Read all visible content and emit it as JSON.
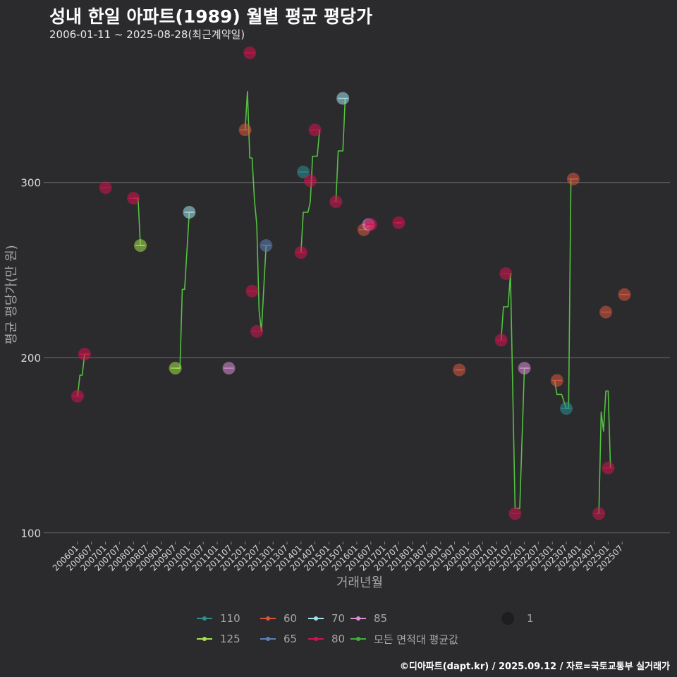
{
  "title": "성내 한일 아파트(1989) 월별 평균 평당가",
  "subtitle": "2006-01-11 ~ 2025-08-28(최근계약일)",
  "footer": "©디아파트(dapt.kr) / 2025.09.12 / 자료=국토교통부 실거래가",
  "chart_data": {
    "type": "scatter",
    "xlabel": "거래년월",
    "ylabel": "평균 평당가(만 원)",
    "x_ticks": [
      "200601",
      "200607",
      "200701",
      "200707",
      "200801",
      "200807",
      "200901",
      "200907",
      "201001",
      "201007",
      "201101",
      "201107",
      "201201",
      "201207",
      "201301",
      "201307",
      "201401",
      "201407",
      "201501",
      "201507",
      "201601",
      "201607",
      "201701",
      "201707",
      "201801",
      "201807",
      "201901",
      "201907",
      "202001",
      "202007",
      "202101",
      "202107",
      "202201",
      "202207",
      "202301",
      "202307",
      "202401",
      "202407",
      "202501",
      "202507"
    ],
    "x_start": "2006-01",
    "x_end": "2025-12",
    "ylim": [
      95,
      380
    ],
    "y_ticks": [
      100,
      200,
      300
    ],
    "grid": true,
    "legend": {
      "position": "bottom",
      "size_label": "1",
      "items": [
        {
          "name": "110",
          "color": "#2e8f92"
        },
        {
          "name": "125",
          "color": "#a5e04e"
        },
        {
          "name": "60",
          "color": "#d9573f"
        },
        {
          "name": "65",
          "color": "#5c80b8"
        },
        {
          "name": "70",
          "color": "#a6e2ec"
        },
        {
          "name": "80",
          "color": "#d3124e"
        },
        {
          "name": "85",
          "color": "#d98fd6"
        },
        {
          "name": "모든 면적대 평균값",
          "color": "#3fb03a"
        }
      ]
    },
    "colors": {
      "110": "#2e8f92",
      "125": "#a5e04e",
      "60": "#d9573f",
      "65": "#5c80b8",
      "70": "#a6e2ec",
      "80": "#d3124e",
      "85": "#d98fd6",
      "avg": "#54c141"
    },
    "points": [
      {
        "date": "2006-01",
        "value": 178,
        "series": "80"
      },
      {
        "date": "2006-04",
        "value": 202,
        "series": "80"
      },
      {
        "date": "2007-01",
        "value": 297,
        "series": "80"
      },
      {
        "date": "2008-01",
        "value": 291,
        "series": "80"
      },
      {
        "date": "2008-04",
        "value": 264,
        "series": "125"
      },
      {
        "date": "2009-07",
        "value": 194,
        "series": "125"
      },
      {
        "date": "2010-01",
        "value": 283,
        "series": "70"
      },
      {
        "date": "2011-06",
        "value": 194,
        "series": "85"
      },
      {
        "date": "2012-01",
        "value": 330,
        "series": "60"
      },
      {
        "date": "2012-03",
        "value": 374,
        "series": "80"
      },
      {
        "date": "2012-04",
        "value": 238,
        "series": "80"
      },
      {
        "date": "2012-06",
        "value": 215,
        "series": "80"
      },
      {
        "date": "2012-10",
        "value": 264,
        "series": "65"
      },
      {
        "date": "2014-01",
        "value": 260,
        "series": "80"
      },
      {
        "date": "2014-02",
        "value": 306,
        "series": "110"
      },
      {
        "date": "2014-05",
        "value": 301,
        "series": "80"
      },
      {
        "date": "2014-07",
        "value": 330,
        "series": "80"
      },
      {
        "date": "2015-04",
        "value": 289,
        "series": "80"
      },
      {
        "date": "2015-07",
        "value": 348,
        "series": "70"
      },
      {
        "date": "2016-04",
        "value": 273,
        "series": "60"
      },
      {
        "date": "2016-06",
        "value": 276,
        "series": "85"
      },
      {
        "date": "2016-07",
        "value": 276,
        "series": "80"
      },
      {
        "date": "2017-07",
        "value": 277,
        "series": "80"
      },
      {
        "date": "2019-09",
        "value": 193,
        "series": "60"
      },
      {
        "date": "2021-03",
        "value": 210,
        "series": "80"
      },
      {
        "date": "2021-05",
        "value": 248,
        "series": "80"
      },
      {
        "date": "2021-09",
        "value": 111,
        "series": "80"
      },
      {
        "date": "2022-01",
        "value": 194,
        "series": "85"
      },
      {
        "date": "2023-03",
        "value": 187,
        "series": "60"
      },
      {
        "date": "2023-07",
        "value": 171,
        "series": "110"
      },
      {
        "date": "2023-10",
        "value": 302,
        "series": "60"
      },
      {
        "date": "2024-09",
        "value": 111,
        "series": "80"
      },
      {
        "date": "2024-12",
        "value": 226,
        "series": "60"
      },
      {
        "date": "2025-01",
        "value": 137,
        "series": "80"
      },
      {
        "date": "2025-08",
        "value": 236,
        "series": "60"
      }
    ],
    "average_line": [
      {
        "date": "2006-01",
        "value": 178
      },
      {
        "date": "2006-02",
        "value": 190
      },
      {
        "date": "2006-03",
        "value": 190
      },
      {
        "date": "2006-04",
        "value": 202
      },
      {
        "date": "2006-06",
        "value": 202
      },
      {
        "date": null
      },
      {
        "date": "2008-01",
        "value": 291
      },
      {
        "date": "2008-03",
        "value": 291
      },
      {
        "date": "2008-04",
        "value": 264
      },
      {
        "date": "2008-06",
        "value": 264
      },
      {
        "date": null
      },
      {
        "date": "2009-07",
        "value": 194
      },
      {
        "date": "2009-09",
        "value": 194
      },
      {
        "date": "2009-10",
        "value": 239
      },
      {
        "date": "2009-11",
        "value": 239
      },
      {
        "date": "2010-01",
        "value": 283
      },
      {
        "date": "2010-03",
        "value": 283
      },
      {
        "date": null
      },
      {
        "date": "2012-01",
        "value": 330
      },
      {
        "date": "2012-02",
        "value": 352
      },
      {
        "date": "2012-03",
        "value": 314
      },
      {
        "date": "2012-04",
        "value": 314
      },
      {
        "date": "2012-05",
        "value": 290
      },
      {
        "date": "2012-06",
        "value": 276
      },
      {
        "date": "2012-07",
        "value": 227
      },
      {
        "date": "2012-08",
        "value": 215
      },
      {
        "date": "2012-10",
        "value": 264
      },
      {
        "date": "2012-12",
        "value": 264
      },
      {
        "date": null
      },
      {
        "date": "2014-01",
        "value": 260
      },
      {
        "date": "2014-02",
        "value": 283
      },
      {
        "date": "2014-04",
        "value": 283
      },
      {
        "date": "2014-05",
        "value": 289
      },
      {
        "date": "2014-06",
        "value": 315
      },
      {
        "date": "2014-08",
        "value": 315
      },
      {
        "date": "2014-09",
        "value": 330
      },
      {
        "date": null
      },
      {
        "date": "2015-04",
        "value": 289
      },
      {
        "date": "2015-05",
        "value": 318
      },
      {
        "date": "2015-07",
        "value": 318
      },
      {
        "date": "2015-08",
        "value": 348
      },
      {
        "date": null
      },
      {
        "date": "2016-04",
        "value": 273
      },
      {
        "date": "2016-07",
        "value": 276
      },
      {
        "date": null
      },
      {
        "date": "2017-06",
        "value": 277
      },
      {
        "date": "2017-08",
        "value": 277
      },
      {
        "date": null
      },
      {
        "date": "2019-08",
        "value": 193
      },
      {
        "date": "2019-10",
        "value": 193
      },
      {
        "date": null
      },
      {
        "date": "2021-03",
        "value": 210
      },
      {
        "date": "2021-04",
        "value": 229
      },
      {
        "date": "2021-06",
        "value": 229
      },
      {
        "date": "2021-07",
        "value": 248
      },
      {
        "date": "2021-09",
        "value": 114
      },
      {
        "date": "2021-11",
        "value": 114
      },
      {
        "date": "2022-01",
        "value": 194
      },
      {
        "date": "2022-03",
        "value": 194
      },
      {
        "date": null
      },
      {
        "date": "2023-02",
        "value": 187
      },
      {
        "date": "2023-03",
        "value": 179
      },
      {
        "date": "2023-05",
        "value": 179
      },
      {
        "date": "2023-07",
        "value": 171
      },
      {
        "date": "2023-08",
        "value": 171
      },
      {
        "date": "2023-09",
        "value": 302
      },
      {
        "date": "2023-12",
        "value": 302
      },
      {
        "date": null
      },
      {
        "date": "2024-08",
        "value": 111
      },
      {
        "date": "2024-09",
        "value": 111
      },
      {
        "date": "2024-10",
        "value": 169
      },
      {
        "date": "2024-11",
        "value": 158
      },
      {
        "date": "2024-12",
        "value": 181
      },
      {
        "date": "2025-01",
        "value": 181
      },
      {
        "date": "2025-02",
        "value": 137
      }
    ]
  }
}
